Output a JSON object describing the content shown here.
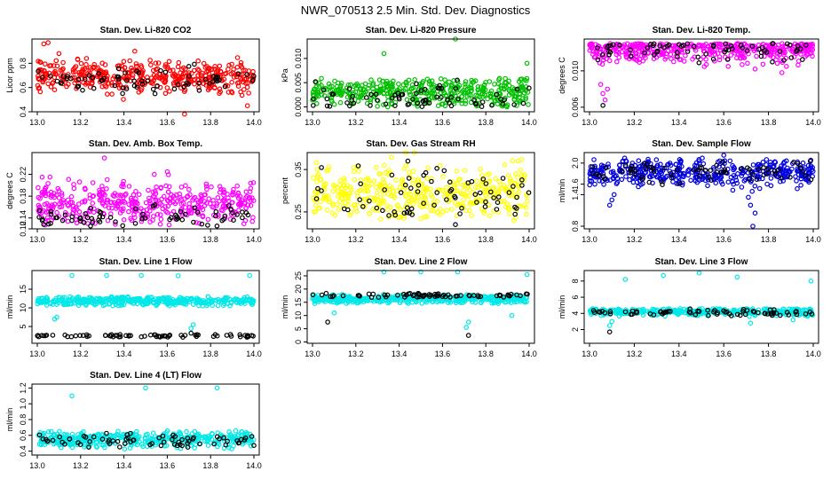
{
  "figure_title": "NWR_070513  2.5 Min. Std. Dev. Diagnostics",
  "chart_data": [
    {
      "type": "scatter",
      "title": "Stan. Dev. Li-820 CO2",
      "ylabel": "Licor ppm",
      "xlim": [
        13.0,
        14.0
      ],
      "ylim": [
        0.4,
        1.0
      ],
      "xticks": [
        "13.0",
        "13.2",
        "13.4",
        "13.6",
        "13.8",
        "14.0"
      ],
      "yticks": [
        "0.4",
        "0.6",
        "0.8"
      ],
      "yticks_values": [
        0.4,
        0.6,
        0.8
      ],
      "series": [
        {
          "name": "main",
          "color": "#ff0000",
          "center": 0.69,
          "spread": 0.06,
          "lo": 0.5,
          "hi": 0.85,
          "outliers": [
            [
              13.03,
              0.96
            ],
            [
              13.05,
              0.97
            ],
            [
              13.1,
              0.88
            ],
            [
              13.45,
              0.9
            ],
            [
              13.68,
              0.38
            ],
            [
              13.97,
              0.45
            ]
          ]
        },
        {
          "name": "sub",
          "color": "#000000",
          "center": 0.66,
          "spread": 0.06,
          "lo": 0.52,
          "hi": 0.85,
          "outliers": []
        }
      ]
    },
    {
      "type": "scatter",
      "title": "Stan. Dev. Li-820 Pressure",
      "ylabel": "kPa",
      "xlim": [
        13.0,
        14.0
      ],
      "ylim": [
        -0.001,
        0.014
      ],
      "xticks": [
        "13.0",
        "13.2",
        "13.4",
        "13.6",
        "13.8",
        "14.0"
      ],
      "yticks": [
        "0.000",
        "0.005",
        "0.010"
      ],
      "yticks_values": [
        0.0,
        0.005,
        0.01
      ],
      "series": [
        {
          "name": "main",
          "color": "#00c000",
          "center": 0.003,
          "spread": 0.0015,
          "lo": 0.0,
          "hi": 0.006,
          "outliers": [
            [
              13.33,
              0.011
            ],
            [
              13.66,
              0.014
            ],
            [
              13.99,
              0.009
            ]
          ]
        },
        {
          "name": "sub",
          "color": "#000000",
          "center": 0.002,
          "spread": 0.0015,
          "lo": 0.0,
          "hi": 0.006,
          "outliers": []
        }
      ]
    },
    {
      "type": "scatter",
      "title": "Stan. Dev. Li-820 Temp.",
      "ylabel": "degrees C",
      "xlim": [
        13.0,
        14.0
      ],
      "ylim": [
        0.0055,
        0.0135
      ],
      "xticks": [
        "13.0",
        "13.2",
        "13.4",
        "13.6",
        "13.8",
        "14.0"
      ],
      "yticks": [
        "0.006",
        "0.010"
      ],
      "yticks_values": [
        0.006,
        0.01
      ],
      "series": [
        {
          "name": "main",
          "color": "#ff00ff",
          "center": 0.0124,
          "spread": 0.0007,
          "lo": 0.0062,
          "hi": 0.013,
          "outliers": [
            [
              13.05,
              0.0085
            ],
            [
              13.06,
              0.0075
            ],
            [
              13.07,
              0.0068
            ],
            [
              13.08,
              0.008
            ],
            [
              13.3,
              0.0115
            ],
            [
              13.62,
              0.0105
            ],
            [
              13.74,
              0.0102
            ],
            [
              13.86,
              0.0098
            ],
            [
              13.88,
              0.0105
            ]
          ]
        },
        {
          "name": "sub",
          "color": "#000000",
          "center": 0.0124,
          "spread": 0.0007,
          "lo": 0.0062,
          "hi": 0.013,
          "outliers": [
            [
              13.06,
              0.0062
            ]
          ]
        }
      ]
    },
    {
      "type": "scatter",
      "title": "Stan. Dev. Amb. Box Temp.",
      "ylabel": "degrees C",
      "xlim": [
        13.0,
        14.0
      ],
      "ylim": [
        0.12,
        0.26
      ],
      "xticks": [
        "13.0",
        "13.2",
        "13.4",
        "13.6",
        "13.8",
        "14.0"
      ],
      "yticks": [
        "0.12",
        "0.14",
        "0.18",
        "0.22"
      ],
      "yticks_values": [
        0.12,
        0.14,
        0.18,
        0.22
      ],
      "series": [
        {
          "name": "main",
          "color": "#ff00ff",
          "center": 0.165,
          "spread": 0.02,
          "lo": 0.125,
          "hi": 0.22,
          "outliers": [
            [
              13.31,
              0.25
            ],
            [
              13.54,
              0.22
            ],
            [
              13.6,
              0.225
            ]
          ]
        },
        {
          "name": "sub",
          "color": "#000000",
          "center": 0.14,
          "spread": 0.01,
          "lo": 0.125,
          "hi": 0.17,
          "outliers": []
        }
      ]
    },
    {
      "type": "scatter",
      "title": "Stan. Dev. Gas Stream RH",
      "ylabel": "percent",
      "xlim": [
        13.0,
        14.0
      ],
      "ylim": [
        0.21,
        0.39
      ],
      "xticks": [
        "13.0",
        "13.2",
        "13.4",
        "13.6",
        "13.8",
        "14.0"
      ],
      "yticks": [
        "0.25",
        "0.35"
      ],
      "yticks_values": [
        0.25,
        0.35
      ],
      "series": [
        {
          "name": "main",
          "color": "#ffff00",
          "center": 0.295,
          "spread": 0.03,
          "lo": 0.23,
          "hi": 0.38,
          "outliers": [
            [
              13.43,
              0.39
            ],
            [
              13.47,
              0.39
            ],
            [
              13.93,
              0.23
            ]
          ]
        },
        {
          "name": "sub",
          "color": "#000000",
          "center": 0.29,
          "spread": 0.035,
          "lo": 0.24,
          "hi": 0.37,
          "outliers": [
            [
              13.44,
              0.37
            ],
            [
              13.66,
              0.22
            ]
          ]
        }
      ]
    },
    {
      "type": "scatter",
      "title": "Stan. Dev. Sample Flow",
      "ylabel": "ml/min",
      "xlim": [
        13.0,
        14.0
      ],
      "ylim": [
        0.75,
        2.2
      ],
      "xticks": [
        "13.0",
        "13.2",
        "13.4",
        "13.6",
        "13.8",
        "14.0"
      ],
      "yticks": [
        "0.8",
        "1.4",
        "1.6",
        "2.0"
      ],
      "yticks_values": [
        0.8,
        1.4,
        1.6,
        2.0
      ],
      "series": [
        {
          "name": "main",
          "color": "#0000e0",
          "center": 1.82,
          "spread": 0.12,
          "lo": 1.45,
          "hi": 2.1,
          "outliers": [
            [
              13.09,
              1.2
            ],
            [
              13.1,
              1.3
            ],
            [
              13.11,
              1.4
            ],
            [
              13.6,
              2.15
            ],
            [
              13.73,
              0.8
            ],
            [
              13.74,
              1.05
            ],
            [
              13.72,
              1.2
            ],
            [
              13.71,
              1.35
            ]
          ]
        },
        {
          "name": "sub",
          "color": "#000000",
          "center": 1.83,
          "spread": 0.12,
          "lo": 1.5,
          "hi": 2.05,
          "outliers": []
        }
      ]
    },
    {
      "type": "scatter",
      "title": "Stan. Dev. Line 1 Flow",
      "ylabel": "ml/min",
      "xlim": [
        13.0,
        14.0
      ],
      "ylim": [
        0.5,
        20.0
      ],
      "xticks": [
        "13.0",
        "13.2",
        "13.4",
        "13.6",
        "13.8",
        "14.0"
      ],
      "yticks": [
        "5",
        "10",
        "15"
      ],
      "yticks_values": [
        5,
        10,
        15
      ],
      "series": [
        {
          "name": "main",
          "color": "#00e8e8",
          "center": 11.8,
          "spread": 0.6,
          "lo": 10.5,
          "hi": 13.0,
          "outliers": [
            [
              13.16,
              18.7
            ],
            [
              13.32,
              18.7
            ],
            [
              13.48,
              18.7
            ],
            [
              13.65,
              18.6
            ],
            [
              13.98,
              18.7
            ],
            [
              13.08,
              7.0
            ],
            [
              13.09,
              7.5
            ],
            [
              13.72,
              5.5
            ],
            [
              13.71,
              4.5
            ]
          ]
        },
        {
          "name": "sub",
          "color": "#000000",
          "center": 2.5,
          "spread": 0.2,
          "lo": 2.1,
          "hi": 2.9,
          "outliers": [
            [
              13.71,
              3.2
            ]
          ]
        }
      ]
    },
    {
      "type": "scatter",
      "title": "Stan. Dev. Line 2 Flow",
      "ylabel": "ml/min",
      "xlim": [
        13.0,
        14.0
      ],
      "ylim": [
        -0.5,
        27.0
      ],
      "xticks": [
        "13.0",
        "13.2",
        "13.4",
        "13.6",
        "13.8",
        "14.0"
      ],
      "yticks": [
        "0",
        "5",
        "10",
        "15",
        "20",
        "25"
      ],
      "yticks_values": [
        0,
        5,
        10,
        15,
        20,
        25
      ],
      "series": [
        {
          "name": "main",
          "color": "#00e8e8",
          "center": 16.3,
          "spread": 0.8,
          "lo": 14.5,
          "hi": 18.0,
          "outliers": [
            [
              13.33,
              26.5
            ],
            [
              13.5,
              26.5
            ],
            [
              13.67,
              26.5
            ],
            [
              13.99,
              25.5
            ],
            [
              13.1,
              11.0
            ],
            [
              13.72,
              7.5
            ],
            [
              13.71,
              5.5
            ],
            [
              13.92,
              10.0
            ]
          ]
        },
        {
          "name": "sub",
          "color": "#000000",
          "center": 17.6,
          "spread": 0.4,
          "lo": 16.8,
          "hi": 18.4,
          "outliers": [
            [
              13.07,
              7.5
            ],
            [
              13.72,
              2.5
            ]
          ]
        }
      ]
    },
    {
      "type": "scatter",
      "title": "Stan. Dev. Line 3 Flow",
      "ylabel": "ml/min",
      "xlim": [
        13.0,
        14.0
      ],
      "ylim": [
        0.3,
        9.3
      ],
      "xticks": [
        "13.0",
        "13.2",
        "13.4",
        "13.6",
        "13.8",
        "14.0"
      ],
      "yticks": [
        "2",
        "4",
        "6",
        "8"
      ],
      "yticks_values": [
        2,
        4,
        6,
        8
      ],
      "series": [
        {
          "name": "main",
          "color": "#00e8e8",
          "center": 4.2,
          "spread": 0.2,
          "lo": 3.6,
          "hi": 4.6,
          "outliers": [
            [
              13.16,
              8.2
            ],
            [
              13.33,
              8.7
            ],
            [
              13.49,
              9.0
            ],
            [
              13.66,
              8.5
            ],
            [
              13.99,
              8.0
            ],
            [
              13.1,
              3.0
            ],
            [
              13.09,
              2.5
            ],
            [
              13.91,
              3.2
            ],
            [
              13.72,
              2.8
            ]
          ]
        },
        {
          "name": "sub",
          "color": "#000000",
          "center": 4.1,
          "spread": 0.2,
          "lo": 3.7,
          "hi": 4.6,
          "outliers": [
            [
              13.09,
              1.7
            ]
          ]
        }
      ]
    },
    {
      "type": "scatter",
      "title": "Stan. Dev. Line 4 (LT) Flow",
      "ylabel": "ml/min",
      "xlim": [
        13.0,
        14.0
      ],
      "ylim": [
        0.35,
        1.25
      ],
      "xticks": [
        "13.0",
        "13.2",
        "13.4",
        "13.6",
        "13.8",
        "14.0"
      ],
      "yticks": [
        "0.4",
        "0.6",
        "0.8",
        "1.0",
        "1.2"
      ],
      "yticks_values": [
        0.4,
        0.6,
        0.8,
        1.0,
        1.2
      ],
      "series": [
        {
          "name": "main",
          "color": "#00e8e8",
          "center": 0.55,
          "spread": 0.05,
          "lo": 0.42,
          "hi": 0.66,
          "outliers": [
            [
              13.16,
              1.1
            ],
            [
              13.5,
              1.2
            ],
            [
              13.83,
              1.2
            ]
          ]
        },
        {
          "name": "sub",
          "color": "#000000",
          "center": 0.53,
          "spread": 0.05,
          "lo": 0.42,
          "hi": 0.64,
          "outliers": []
        }
      ]
    }
  ]
}
